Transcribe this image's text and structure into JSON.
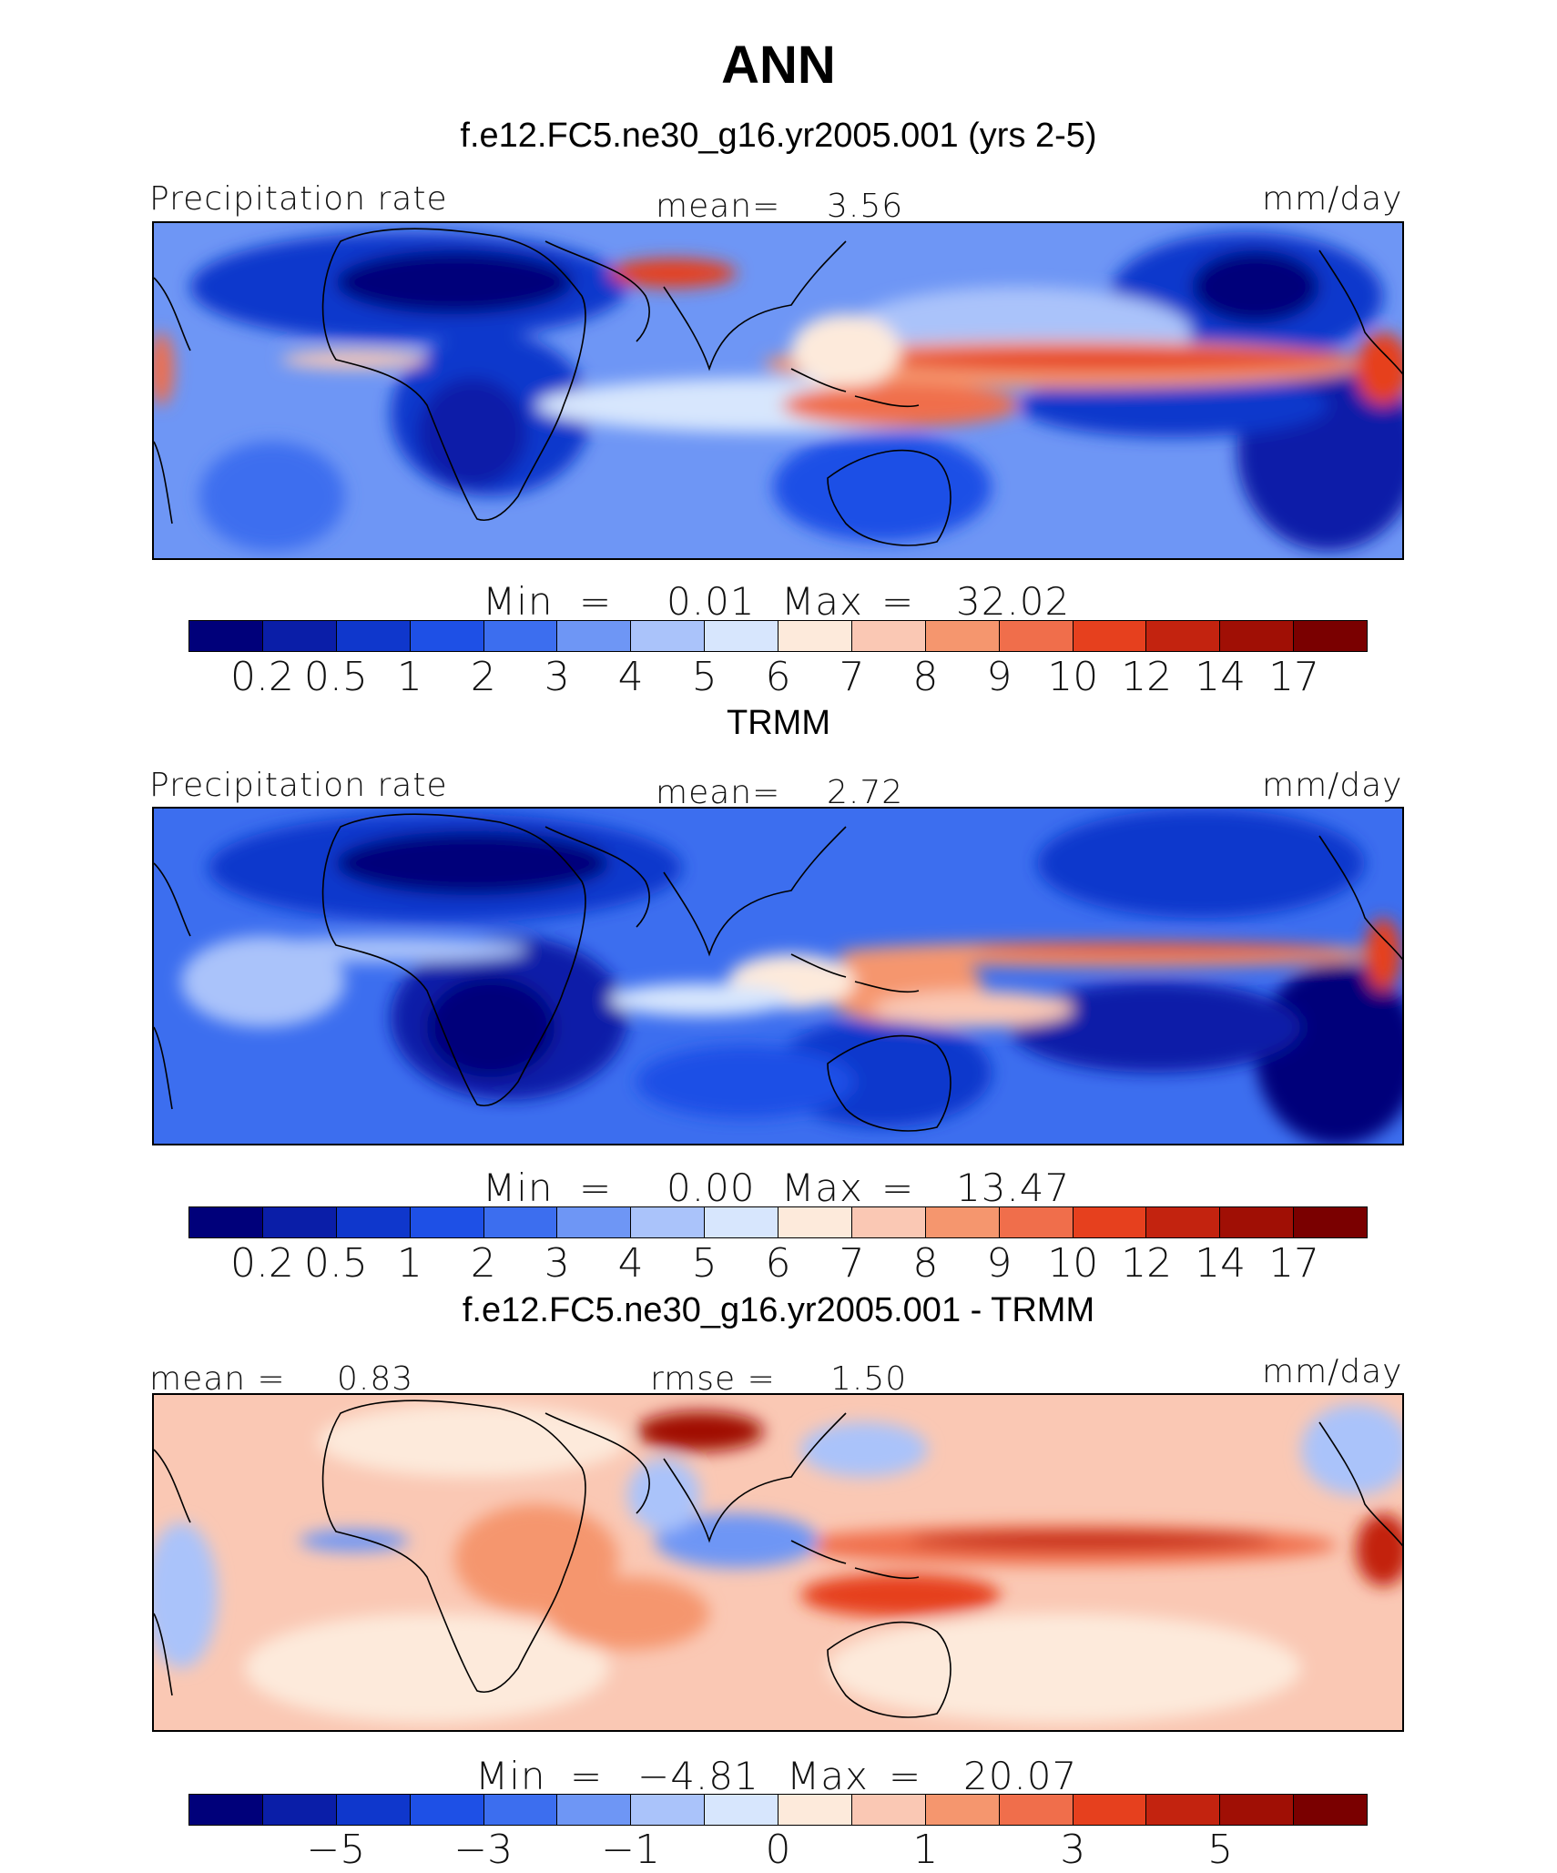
{
  "figure": {
    "title": "ANN"
  },
  "chart_data": [
    {
      "type": "heatmap",
      "title": "f.e12.FC5.ne30_g16.yr2005.001 (yrs 2-5)",
      "left_label": "Precipitation rate",
      "center_label": "mean=",
      "center_value": "3.56",
      "units": "mm/day",
      "min_label": "Min",
      "min_value": "0.01",
      "max_label": "Max",
      "max_value": "32.02",
      "levels": [
        "0.2",
        "0.5",
        "1",
        "2",
        "3",
        "4",
        "5",
        "6",
        "7",
        "8",
        "9",
        "10",
        "12",
        "14",
        "17"
      ],
      "colors": [
        "#00007a",
        "#0a1ea8",
        "#0f37cc",
        "#1e50e6",
        "#3c6eef",
        "#6e96f5",
        "#aac3fa",
        "#d7e6fd",
        "#fdeadb",
        "#fac8b4",
        "#f5966e",
        "#f06e4b",
        "#e6401e",
        "#c3230f",
        "#a00f05",
        "#7a0000"
      ]
    },
    {
      "type": "heatmap",
      "title": "TRMM",
      "left_label": "Precipitation rate",
      "center_label": "mean=",
      "center_value": "2.72",
      "units": "mm/day",
      "min_label": "Min",
      "min_value": "0.00",
      "max_label": "Max",
      "max_value": "13.47",
      "levels": [
        "0.2",
        "0.5",
        "1",
        "2",
        "3",
        "4",
        "5",
        "6",
        "7",
        "8",
        "9",
        "10",
        "12",
        "14",
        "17"
      ],
      "colors": [
        "#00007a",
        "#0a1ea8",
        "#0f37cc",
        "#1e50e6",
        "#3c6eef",
        "#6e96f5",
        "#aac3fa",
        "#d7e6fd",
        "#fdeadb",
        "#fac8b4",
        "#f5966e",
        "#f06e4b",
        "#e6401e",
        "#c3230f",
        "#a00f05",
        "#7a0000"
      ]
    },
    {
      "type": "heatmap",
      "title": "f.e12.FC5.ne30_g16.yr2005.001 - TRMM",
      "left_label": "mean =",
      "left_value": "0.83",
      "center_label": "rmse =",
      "center_value": "1.50",
      "units": "mm/day",
      "min_label": "Min",
      "min_value": "−4.81",
      "max_label": "Max",
      "max_value": "20.07",
      "levels": [
        "−5",
        "−3",
        "−1",
        "0",
        "1",
        "3",
        "5"
      ],
      "colors": [
        "#00007a",
        "#0a1ea8",
        "#0f37cc",
        "#1e50e6",
        "#3c6eef",
        "#6e96f5",
        "#aac3fa",
        "#d7e6fd",
        "#fdeadb",
        "#fac8b4",
        "#f5966e",
        "#f06e4b",
        "#e6401e",
        "#c3230f",
        "#a00f05",
        "#7a0000"
      ]
    }
  ]
}
